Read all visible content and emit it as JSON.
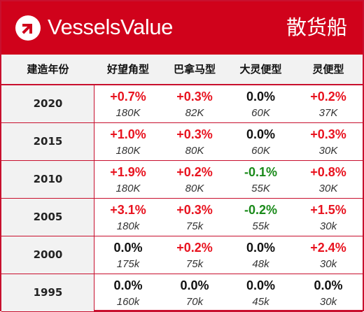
{
  "header": {
    "brand": "VesselsValue",
    "sector": "散货船",
    "logo_icon": "vesselsvalue-logo-icon",
    "brand_color": "#d0021b"
  },
  "columns": {
    "year": "建造年份",
    "types": [
      "好望角型",
      "巴拿马型",
      "大灵便型",
      "灵便型"
    ]
  },
  "rows": [
    {
      "year": "2020",
      "cells": [
        {
          "change": "+0.7%",
          "price": "180K",
          "trend": "pos"
        },
        {
          "change": "+0.3%",
          "price": "82K",
          "trend": "pos"
        },
        {
          "change": "0.0%",
          "price": "60K",
          "trend": "zero"
        },
        {
          "change": "+0.2%",
          "price": "37K",
          "trend": "pos"
        }
      ]
    },
    {
      "year": "2015",
      "cells": [
        {
          "change": "+1.0%",
          "price": "180K",
          "trend": "pos"
        },
        {
          "change": "+0.3%",
          "price": "80K",
          "trend": "pos"
        },
        {
          "change": "0.0%",
          "price": "60K",
          "trend": "zero"
        },
        {
          "change": "+0.3%",
          "price": "30K",
          "trend": "pos"
        }
      ]
    },
    {
      "year": "2010",
      "cells": [
        {
          "change": "+1.9%",
          "price": "180K",
          "trend": "pos"
        },
        {
          "change": "+0.2%",
          "price": "80K",
          "trend": "pos"
        },
        {
          "change": "-0.1%",
          "price": "55K",
          "trend": "neg"
        },
        {
          "change": "+0.8%",
          "price": "30K",
          "trend": "pos"
        }
      ]
    },
    {
      "year": "2005",
      "cells": [
        {
          "change": "+3.1%",
          "price": "180k",
          "trend": "pos"
        },
        {
          "change": "+0.3%",
          "price": "75k",
          "trend": "pos"
        },
        {
          "change": "-0.2%",
          "price": "55k",
          "trend": "neg"
        },
        {
          "change": "+1.5%",
          "price": "30k",
          "trend": "pos"
        }
      ]
    },
    {
      "year": "2000",
      "cells": [
        {
          "change": "0.0%",
          "price": "175k",
          "trend": "zero"
        },
        {
          "change": "+0.2%",
          "price": "75k",
          "trend": "pos"
        },
        {
          "change": "0.0%",
          "price": "48k",
          "trend": "zero"
        },
        {
          "change": "+2.4%",
          "price": "30k",
          "trend": "pos"
        }
      ]
    },
    {
      "year": "1995",
      "cells": [
        {
          "change": "0.0%",
          "price": "160k",
          "trend": "zero"
        },
        {
          "change": "0.0%",
          "price": "70k",
          "trend": "zero"
        },
        {
          "change": "0.0%",
          "price": "45k",
          "trend": "zero"
        },
        {
          "change": "0.0%",
          "price": "30k",
          "trend": "zero"
        }
      ]
    }
  ],
  "colors": {
    "increase": "#e8131f",
    "decrease": "#1a8a1a",
    "unchanged": "#111111",
    "border": "#c8102e"
  }
}
